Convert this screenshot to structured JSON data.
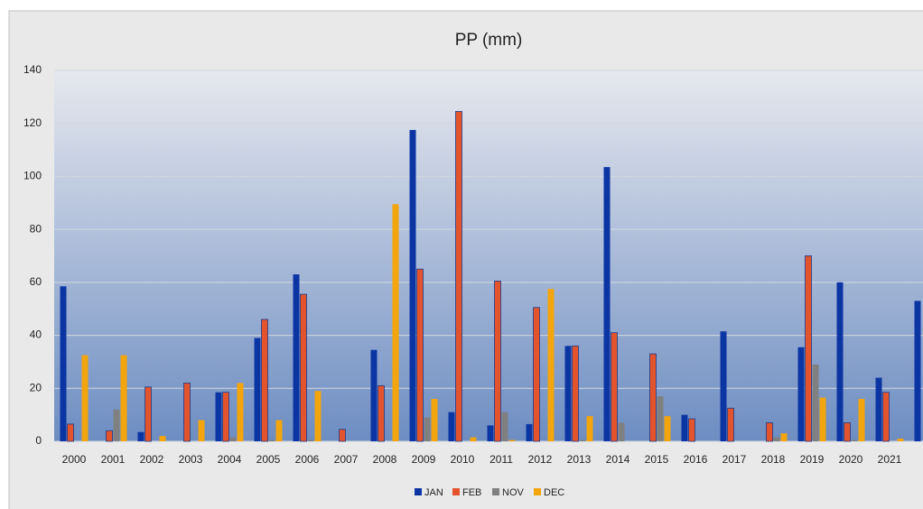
{
  "chart_data": {
    "type": "bar",
    "title": "PP (mm)",
    "categories": [
      "2000",
      "2001",
      "2002",
      "2003",
      "2004",
      "2005",
      "2006",
      "2007",
      "2008",
      "2009",
      "2010",
      "2011",
      "2012",
      "2013",
      "2014",
      "2015",
      "2016",
      "2017",
      "2018",
      "2019",
      "2020",
      "2021",
      null
    ],
    "series": [
      {
        "name": "JAN",
        "color": "#0b35a3",
        "values": [
          58.5,
          0,
          3.5,
          0,
          18.5,
          39,
          63,
          0,
          34.5,
          117.5,
          11,
          6,
          6.5,
          36,
          103.5,
          0,
          10,
          41.5,
          0,
          35.5,
          60,
          24,
          53
        ]
      },
      {
        "name": "FEB",
        "color": "#e4542c",
        "values": [
          6.5,
          4,
          20.5,
          22,
          18.5,
          46,
          55.5,
          4.5,
          21,
          65,
          124.5,
          60.5,
          50.5,
          36,
          41,
          33,
          8.5,
          12.5,
          7,
          70,
          7,
          18.5,
          null
        ]
      },
      {
        "name": "NOV",
        "color": "#808080",
        "values": [
          0,
          12,
          0,
          0,
          1.5,
          0.5,
          0.5,
          0,
          0,
          9,
          0,
          11,
          0,
          0.5,
          7,
          17,
          0,
          0,
          1.5,
          29,
          0.5,
          0,
          null
        ]
      },
      {
        "name": "DEC",
        "color": "#f2a50c",
        "values": [
          32.5,
          32.5,
          2,
          8,
          22,
          8,
          19,
          0,
          89.5,
          16,
          1.5,
          0.5,
          57.5,
          9.5,
          0,
          9.5,
          0,
          0,
          3,
          16.5,
          16,
          1,
          null
        ]
      }
    ],
    "ylim": [
      0,
      140
    ],
    "yticks": [
      0,
      20,
      40,
      60,
      80,
      100,
      120,
      140
    ],
    "grid": true,
    "legend": "bottom"
  }
}
